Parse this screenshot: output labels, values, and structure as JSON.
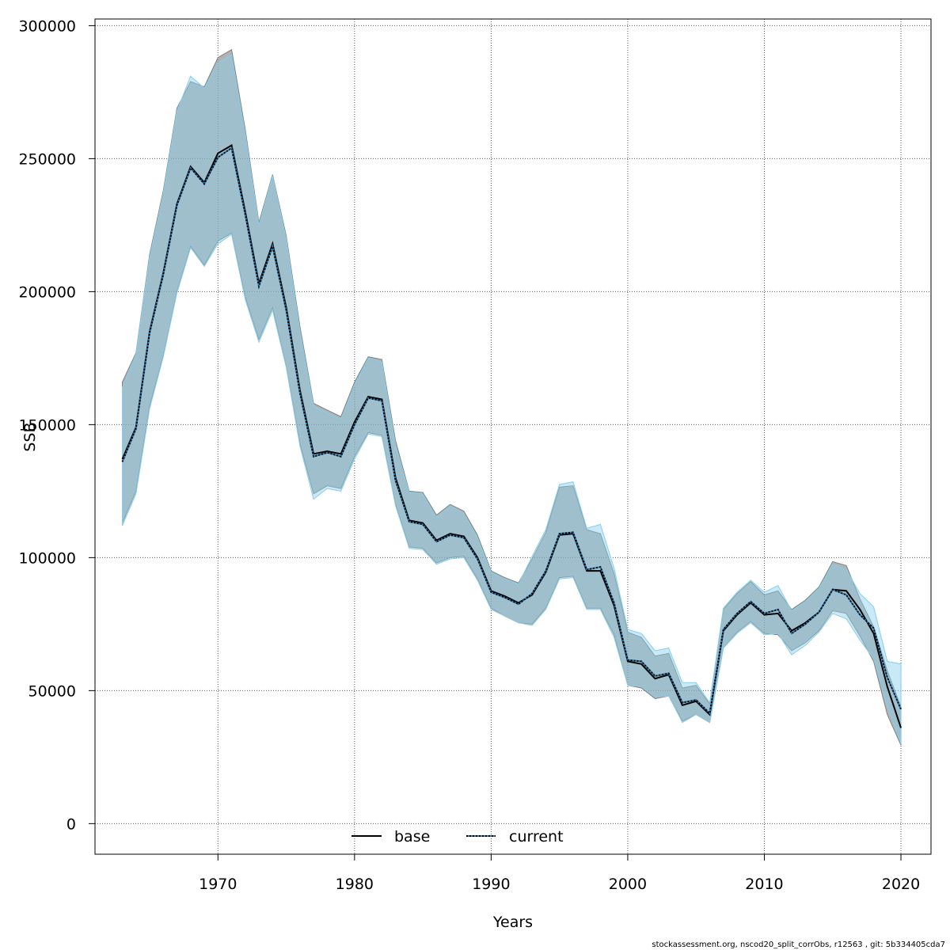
{
  "chart_data": {
    "type": "line",
    "xlabel": "Years",
    "ylabel": "SSB",
    "xlim": [
      1961,
      2022.2
    ],
    "ylim": [
      -11500,
      302500
    ],
    "xticks": [
      1970,
      1980,
      1990,
      2000,
      2010,
      2020
    ],
    "yticks": [
      0,
      50000,
      100000,
      150000,
      200000,
      250000,
      300000
    ],
    "grid": true,
    "legend_position": "bottom",
    "x": [
      1963,
      1964,
      1965,
      1966,
      1967,
      1968,
      1969,
      1970,
      1971,
      1972,
      1973,
      1974,
      1975,
      1976,
      1977,
      1978,
      1979,
      1980,
      1981,
      1982,
      1983,
      1984,
      1985,
      1986,
      1987,
      1988,
      1989,
      1990,
      1991,
      1992,
      1993,
      1994,
      1995,
      1996,
      1997,
      1998,
      1999,
      2000,
      2001,
      2002,
      2003,
      2004,
      2005,
      2006,
      2007,
      2008,
      2009,
      2010,
      2011,
      2012,
      2013,
      2014,
      2015,
      2016,
      2017,
      2018,
      2019,
      2020
    ],
    "series": [
      {
        "name": "base",
        "line_color": "#000000",
        "dash": "solid",
        "band_color": "#808080",
        "values": [
          137000,
          149000,
          185000,
          207000,
          233000,
          247000,
          241000,
          252000,
          255000,
          230000,
          203000,
          218000,
          194000,
          163000,
          139000,
          140000,
          139000,
          151000,
          160500,
          159500,
          130000,
          114000,
          113000,
          106500,
          109000,
          108000,
          100000,
          87500,
          85500,
          83000,
          86000,
          94500,
          108500,
          109000,
          95000,
          95000,
          82000,
          61000,
          60000,
          54500,
          56000,
          44500,
          46000,
          41000,
          72500,
          78500,
          83000,
          78500,
          79000,
          72500,
          75500,
          79500,
          88000,
          87500,
          80500,
          71500,
          51500,
          36000
        ],
        "lower": [
          113000,
          125000,
          157000,
          176000,
          200000,
          217000,
          210000,
          219000,
          222000,
          198000,
          182000,
          194000,
          172000,
          143000,
          124000,
          127000,
          126000,
          138000,
          147000,
          146000,
          120000,
          104000,
          103500,
          98000,
          100000,
          100500,
          92000,
          81000,
          78000,
          75500,
          75000,
          81000,
          92500,
          93000,
          81000,
          81000,
          71000,
          52000,
          51000,
          47000,
          48000,
          38500,
          41000,
          38000,
          66000,
          72000,
          76000,
          71500,
          71000,
          65000,
          68000,
          72500,
          80000,
          79000,
          70500,
          61000,
          41000,
          29500
        ],
        "upper": [
          166000,
          177000,
          214000,
          238000,
          269000,
          279000,
          277000,
          288000,
          291000,
          261000,
          226000,
          244000,
          221000,
          187000,
          158000,
          155500,
          153000,
          166000,
          175500,
          174500,
          144000,
          125000,
          124500,
          116000,
          120000,
          117500,
          108500,
          95000,
          92500,
          90500,
          99500,
          109500,
          126500,
          127000,
          110500,
          109000,
          94000,
          72000,
          70000,
          63000,
          64000,
          51000,
          52000,
          45000,
          80500,
          86500,
          91000,
          86000,
          87500,
          80500,
          84000,
          89000,
          98500,
          97000,
          84500,
          74000,
          57500,
          44000
        ]
      },
      {
        "name": "current",
        "line_color": "#1f77b4",
        "dash": "dotted",
        "band_color": "#87ceeb",
        "values": [
          136000,
          148500,
          184500,
          206500,
          232500,
          246500,
          240500,
          250500,
          254000,
          229000,
          202000,
          217000,
          193000,
          162000,
          138000,
          139500,
          138000,
          150000,
          160000,
          159000,
          129000,
          113500,
          112500,
          106000,
          108500,
          107500,
          99500,
          87000,
          85000,
          82500,
          86500,
          95000,
          109000,
          109500,
          95500,
          96500,
          83000,
          61500,
          61000,
          55500,
          56500,
          45500,
          46500,
          41500,
          73000,
          79000,
          83500,
          79000,
          80500,
          71500,
          75000,
          79500,
          88000,
          86000,
          78500,
          73500,
          55000,
          43000
        ],
        "lower": [
          112000,
          124000,
          156000,
          175500,
          199500,
          216500,
          209500,
          218000,
          221500,
          197000,
          181000,
          193000,
          171500,
          142000,
          122000,
          126000,
          125000,
          137000,
          146500,
          145500,
          119500,
          103500,
          103000,
          97500,
          99500,
          100000,
          91500,
          80500,
          78000,
          75500,
          74500,
          80500,
          92000,
          92500,
          80500,
          80500,
          70000,
          52000,
          51500,
          47500,
          48000,
          38000,
          41000,
          38000,
          66000,
          71500,
          75500,
          71000,
          71500,
          63500,
          67000,
          72000,
          79000,
          77000,
          69000,
          62000,
          44000,
          30000
        ],
        "upper": [
          164000,
          176500,
          213000,
          237000,
          268000,
          281000,
          276500,
          286000,
          289000,
          259500,
          225000,
          243500,
          220000,
          185500,
          157000,
          154500,
          152000,
          165000,
          175000,
          173500,
          142500,
          124500,
          124000,
          115000,
          119500,
          116500,
          107500,
          94500,
          92000,
          90000,
          100500,
          110500,
          127500,
          128500,
          111000,
          112500,
          96000,
          73000,
          71500,
          65000,
          66000,
          53000,
          53000,
          45500,
          81000,
          87000,
          91500,
          87000,
          89500,
          80000,
          83500,
          88500,
          97500,
          95500,
          86500,
          81500,
          61000,
          60000
        ]
      }
    ]
  },
  "footer_text": "stockassessment.org, nscod20_split_corrObs, r12563 , git: 5b334405cda7"
}
